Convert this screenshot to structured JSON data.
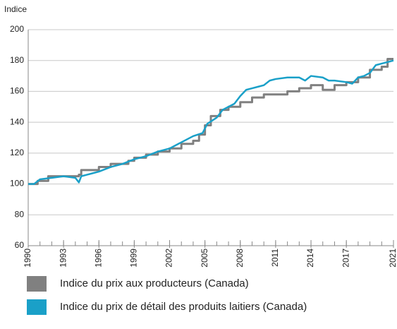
{
  "chart_data": {
    "type": "line",
    "y_label": "Indice",
    "xlim": [
      1990,
      2021
    ],
    "xticks": [
      1990,
      1993,
      1996,
      1999,
      2002,
      2005,
      2008,
      2011,
      2014,
      2017,
      2021
    ],
    "xminor_ticks": [
      1990,
      1991,
      1992,
      1993,
      1994,
      1995,
      1996,
      1997,
      1998,
      1999,
      2000,
      2001,
      2002,
      2003,
      2004,
      2005,
      2006,
      2007,
      2008,
      2009,
      2010,
      2011,
      2012,
      2013,
      2014,
      2015,
      2016,
      2017,
      2018,
      2019,
      2020,
      2021
    ],
    "ylim": [
      60,
      200
    ],
    "yticks": [
      60,
      80,
      100,
      120,
      140,
      160,
      180,
      200
    ],
    "grid": true,
    "legend": "bottom",
    "series": [
      {
        "name": "Indice du prix aux producteurs (Canada)",
        "color": "#808080",
        "step": true,
        "x": [
          1990,
          1990.8,
          1991.7,
          1994.3,
          1994.5,
          1996,
          1997,
          1998.5,
          1999,
          2000,
          2001,
          2002,
          2003,
          2004,
          2004.5,
          2005,
          2005.5,
          2006.3,
          2007,
          2008,
          2009,
          2010,
          2012,
          2013,
          2014,
          2015,
          2016,
          2017,
          2018,
          2019,
          2020,
          2020.5,
          2021
        ],
        "values": [
          100,
          102,
          105,
          106,
          109,
          111,
          113,
          115,
          117,
          119,
          121,
          123,
          126,
          128,
          132,
          138,
          144,
          148,
          150,
          153,
          156,
          158,
          160,
          162,
          164,
          161,
          164,
          166,
          169,
          174,
          176,
          181,
          181
        ]
      },
      {
        "name": "Indice du prix de détail des produits laitiers (Canada)",
        "color": "#1aa0c8",
        "step": false,
        "x": [
          1990,
          1990.5,
          1991,
          1992,
          1993,
          1994,
          1994.3,
          1994.5,
          1995,
          1996,
          1997,
          1998,
          1999,
          2000,
          2001,
          2002,
          2003,
          2004,
          2004.8,
          2005.2,
          2006,
          2006.5,
          2007,
          2007.5,
          2008,
          2008.5,
          2009,
          2009.5,
          2010,
          2010.5,
          2011,
          2012,
          2013,
          2013.5,
          2014,
          2015,
          2015.5,
          2016,
          2017,
          2017.5,
          2018,
          2018.5,
          2019,
          2019.5,
          2020,
          2020.5,
          2021
        ],
        "values": [
          100,
          100,
          103,
          104,
          105,
          104,
          101,
          105,
          106,
          108,
          111,
          113,
          116,
          118,
          121,
          123,
          127,
          131,
          133,
          139,
          143,
          148,
          150,
          152,
          157,
          161,
          162,
          163,
          164,
          167,
          168,
          169,
          169,
          167,
          170,
          169,
          167,
          167,
          166,
          165,
          169,
          170,
          172,
          177,
          178,
          179,
          180
        ]
      }
    ]
  }
}
